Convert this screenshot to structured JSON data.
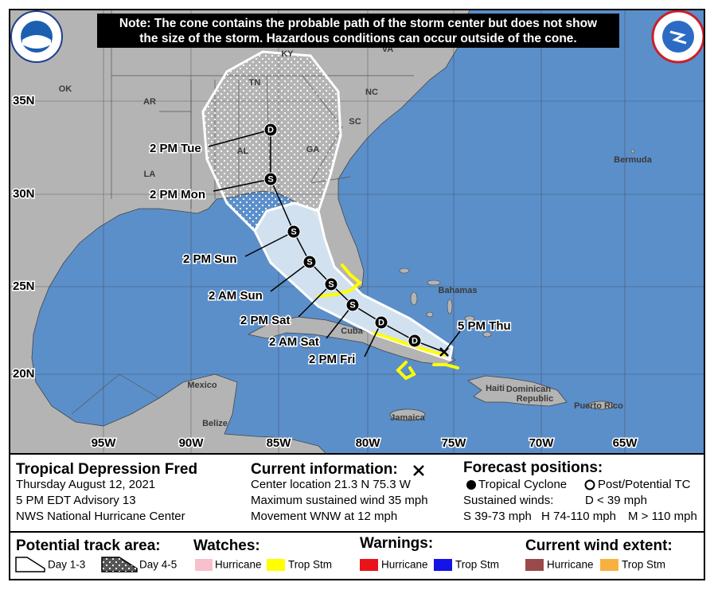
{
  "note": [
    "Note: The cone contains the probable path of the storm center but does not show",
    "the size of the storm. Hazardous conditions can occur outside of the cone."
  ],
  "map": {
    "lat_labels": [
      "35N",
      "30N",
      "25N",
      "20N"
    ],
    "lon_labels": [
      "95W",
      "90W",
      "85W",
      "80W",
      "75W",
      "70W",
      "65W"
    ],
    "places": [
      "KY",
      "VA",
      "TN",
      "NC",
      "OK",
      "AR",
      "SC",
      "GA",
      "AL",
      "LA",
      "Bermuda",
      "Bahamas",
      "Cuba",
      "Mexico",
      "Belize",
      "Haiti",
      "Dominican",
      "Republic",
      "Puerto Rico",
      "Jamaica"
    ],
    "track": [
      {
        "label": "5 PM Thu"
      },
      {
        "symbol": "D"
      },
      {
        "label": "2 PM Fri",
        "symbol": "D"
      },
      {
        "label": "2 AM Sat",
        "symbol": "S"
      },
      {
        "label": "2 PM Sat",
        "symbol": "S"
      },
      {
        "label": "2 AM Sun",
        "symbol": "S"
      },
      {
        "label": "2 PM Sun",
        "symbol": "S"
      },
      {
        "label": "2 PM Mon",
        "symbol": "S"
      },
      {
        "label": "2 PM Tue",
        "symbol": "D"
      }
    ]
  },
  "panel": {
    "storm": [
      "Tropical Depression Fred",
      "Thursday August 12, 2021",
      "5 PM EDT Advisory 13",
      "NWS National Hurricane Center"
    ],
    "current": {
      "title": "Current information:",
      "lines": [
        "Center location 21.3 N 75.3 W",
        "Maximum sustained wind 35 mph",
        "Movement WNW at 12 mph"
      ]
    },
    "forecast": {
      "title": "Forecast positions:",
      "tropical": "Tropical Cyclone",
      "post": "Post/Potential TC",
      "winds_title": "Sustained winds:",
      "winds": [
        "D < 39 mph",
        "S 39-73 mph",
        "H 74-110 mph",
        "M > 110 mph"
      ]
    },
    "legend": {
      "track_title": "Potential track area:",
      "track": [
        "Day 1-3",
        "Day 4-5"
      ],
      "watches_title": "Watches:",
      "watches": [
        "Hurricane",
        "Trop Stm"
      ],
      "warnings_title": "Warnings:",
      "warnings": [
        "Hurricane",
        "Trop Stm"
      ],
      "wind_title": "Current wind extent:",
      "wind": [
        "Hurricane",
        "Trop Stm"
      ]
    }
  }
}
